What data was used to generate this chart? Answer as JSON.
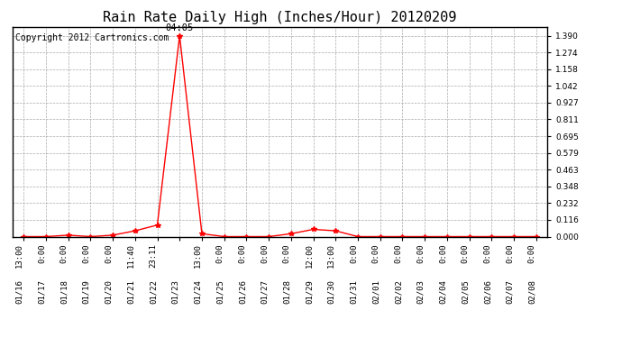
{
  "title": "Rain Rate Daily High (Inches/Hour) 20120209",
  "copyright": "Copyright 2012 Cartronics.com",
  "peak_annotation": "04:05",
  "line_color": "#FF0000",
  "background_color": "#FFFFFF",
  "grid_color": "#AAAAAA",
  "yticks": [
    0.0,
    0.116,
    0.232,
    0.348,
    0.463,
    0.579,
    0.695,
    0.811,
    0.927,
    1.042,
    1.158,
    1.274,
    1.39
  ],
  "ylim": [
    0.0,
    1.45
  ],
  "x_dates": [
    "01/16",
    "01/17",
    "01/18",
    "01/19",
    "01/20",
    "01/21",
    "01/22",
    "01/23",
    "01/24",
    "01/25",
    "01/26",
    "01/27",
    "01/28",
    "01/29",
    "01/30",
    "01/31",
    "02/01",
    "02/02",
    "02/03",
    "02/04",
    "02/05",
    "02/06",
    "02/07",
    "02/08"
  ],
  "x_times": [
    "13:00",
    "0:00",
    "0:00",
    "0:00",
    "0:00",
    "11:40",
    "23:11",
    "",
    "13:00",
    "0:00",
    "0:00",
    "0:00",
    "0:00",
    "12:00",
    "13:00",
    "0:00",
    "0:00",
    "0:00",
    "0:00",
    "0:00",
    "0:00",
    "0:00",
    "0:00",
    "0:00"
  ],
  "y_values": [
    0.0,
    0.0,
    0.01,
    0.0,
    0.01,
    0.04,
    0.08,
    1.39,
    0.02,
    0.0,
    0.0,
    0.0,
    0.02,
    0.05,
    0.04,
    0.0,
    0.0,
    0.0,
    0.0,
    0.0,
    0.0,
    0.0,
    0.0,
    0.0
  ],
  "marker": "*",
  "marker_size": 4,
  "title_fontsize": 11,
  "tick_fontsize": 6.5,
  "copyright_fontsize": 7,
  "peak_idx": 7
}
